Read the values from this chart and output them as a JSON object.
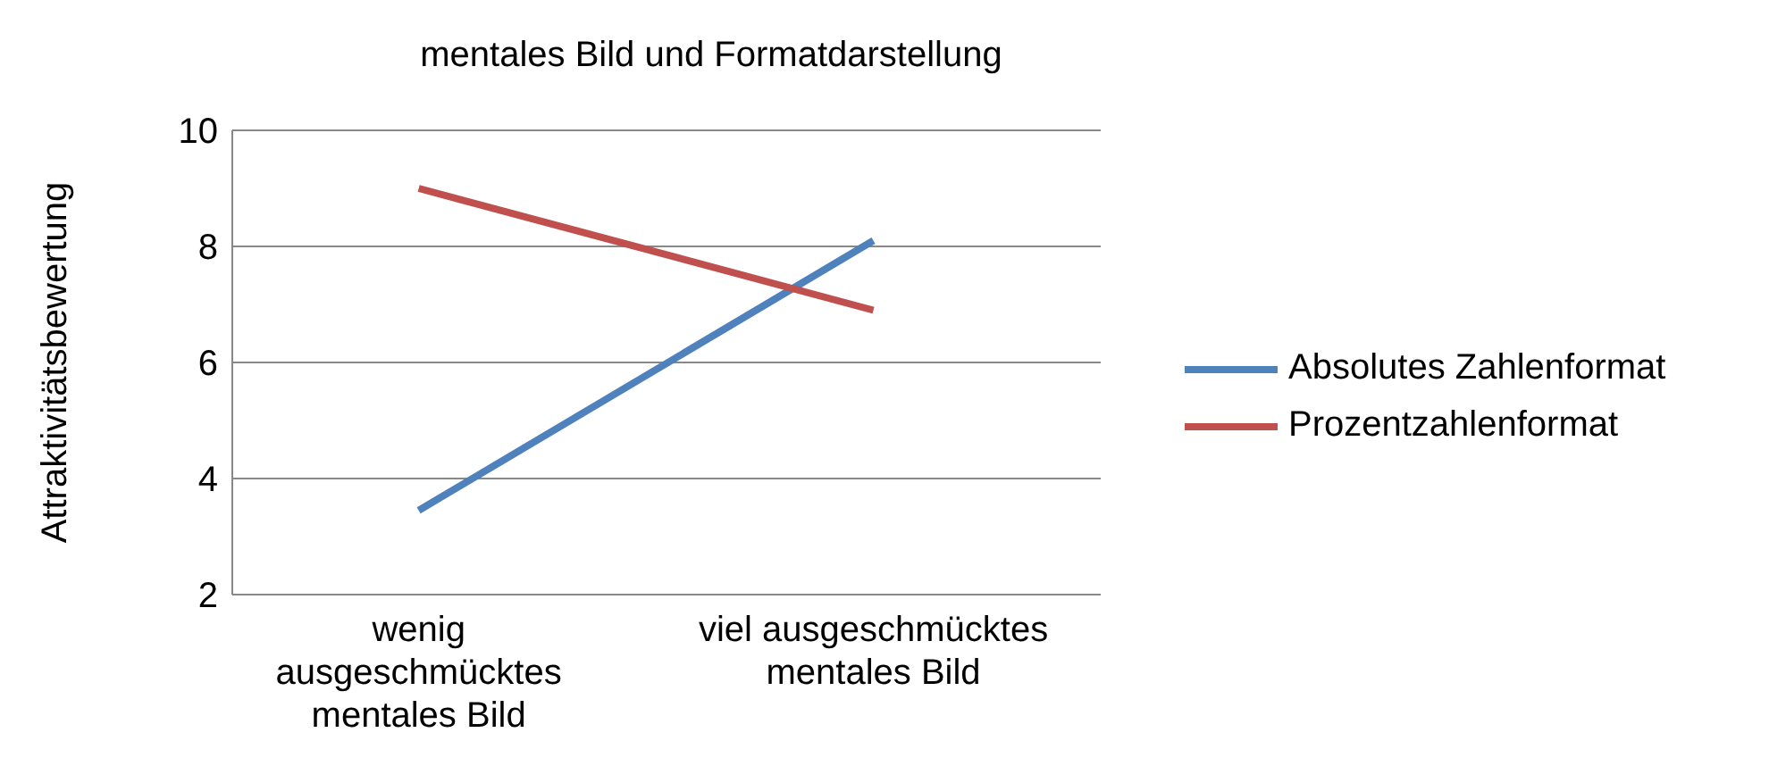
{
  "chart_data": {
    "type": "line",
    "title": "mentales Bild und Formatdarstellung",
    "ylabel": "Attraktivitätsbewertung",
    "categories": [
      "wenig ausgeschmücktes mentales Bild",
      "viel ausgeschmücktes mentales Bild"
    ],
    "series": [
      {
        "name": "Absolutes Zahlenformat",
        "color": "#4f81bd",
        "values": [
          3.45,
          8.1
        ]
      },
      {
        "name": "Prozentzahlenformat",
        "color": "#c0504d",
        "values": [
          9.0,
          6.9
        ]
      }
    ],
    "ylim": [
      2,
      10
    ],
    "yticks": [
      2,
      4,
      6,
      8,
      10
    ],
    "grid": "y",
    "legend": "right",
    "marker": "none",
    "line_style": "solid"
  }
}
